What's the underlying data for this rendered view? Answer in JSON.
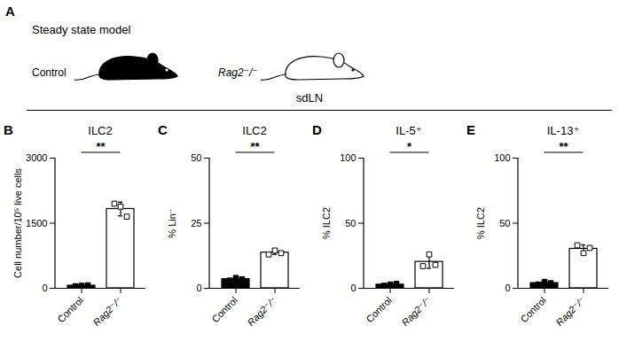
{
  "panel_a": {
    "letter": "A",
    "title": "Steady state model",
    "groups": [
      {
        "name": "Control",
        "color": "#000000"
      },
      {
        "name": "Rag2⁻/⁻",
        "color": "#ffffff"
      }
    ]
  },
  "section_label": "sdLN",
  "chart_data": [
    {
      "letter": "B",
      "type": "bar",
      "title": "ILC2",
      "y_label": "Cell number/10⁵ live cells",
      "categories": [
        "Control",
        "Rag2⁻/⁻"
      ],
      "values": [
        60,
        1827
      ],
      "errors": [
        10,
        160
      ],
      "points": [
        [
          50,
          60,
          70
        ],
        [
          1950,
          1880,
          1650
        ]
      ],
      "colors": [
        "#000000",
        "#ffffff"
      ],
      "marker": "square",
      "ylim": [
        0,
        3000
      ],
      "yticks": [
        0,
        1500,
        3000
      ],
      "annotations": [
        "**"
      ]
    },
    {
      "letter": "C",
      "type": "bar",
      "title": "ILC2",
      "y_label": "% Lin⁻",
      "categories": [
        "Control",
        "Rag2⁻/⁻"
      ],
      "values": [
        3.5,
        13.7
      ],
      "errors": [
        0.5,
        0.7
      ],
      "points": [
        [
          3,
          4,
          3.5
        ],
        [
          13,
          14.5,
          13.5
        ]
      ],
      "colors": [
        "#000000",
        "#ffffff"
      ],
      "marker": "square",
      "ylim": [
        0,
        50
      ],
      "yticks": [
        0,
        25,
        50
      ],
      "annotations": [
        "**"
      ]
    },
    {
      "letter": "D",
      "type": "bar",
      "title": "IL-5⁺",
      "y_label": "% ILC2",
      "categories": [
        "Control",
        "Rag2⁻/⁻"
      ],
      "values": [
        2.8,
        20.3
      ],
      "errors": [
        0.8,
        5
      ],
      "points": [
        [
          2,
          3,
          3.5
        ],
        [
          17,
          26,
          18
        ]
      ],
      "colors": [
        "#000000",
        "#ffffff"
      ],
      "marker": "square",
      "ylim": [
        0,
        100
      ],
      "yticks": [
        0,
        50,
        100
      ],
      "annotations": [
        "*"
      ]
    },
    {
      "letter": "E",
      "type": "bar",
      "title": "IL-13⁺",
      "y_label": "% ILC2",
      "categories": [
        "Control",
        "Rag2⁻/⁻"
      ],
      "values": [
        4,
        30.3
      ],
      "errors": [
        1,
        3
      ],
      "points": [
        [
          3,
          5,
          4
        ],
        [
          33,
          27,
          31
        ]
      ],
      "colors": [
        "#000000",
        "#ffffff"
      ],
      "marker": "square",
      "ylim": [
        0,
        100
      ],
      "yticks": [
        0,
        50,
        100
      ],
      "annotations": [
        "**"
      ]
    }
  ]
}
